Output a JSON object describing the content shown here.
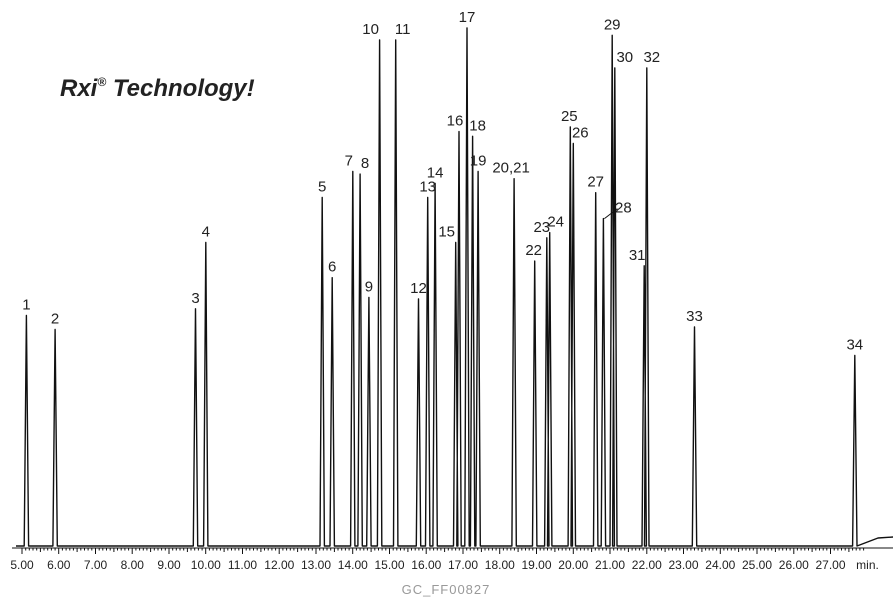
{
  "chart_data": {
    "type": "line",
    "title": "",
    "xlabel": "",
    "ylabel": "",
    "x_unit": "min.",
    "xlim": [
      5.0,
      27.9
    ],
    "ylim": [
      0,
      100
    ],
    "tick_labels": [
      "5.00",
      "6.00",
      "7.00",
      "8.00",
      "9.00",
      "10.00",
      "11.00",
      "12.00",
      "13.00",
      "14.00",
      "15.00",
      "16.00",
      "17.00",
      "18.00",
      "19.00",
      "20.00",
      "21.00",
      "22.00",
      "23.00",
      "24.00",
      "25.00",
      "26.00",
      "27.00",
      "min."
    ],
    "tick_values": [
      5,
      6,
      7,
      8,
      9,
      10,
      11,
      12,
      13,
      14,
      15,
      16,
      17,
      18,
      19,
      20,
      21,
      22,
      23,
      24,
      25,
      26,
      27
    ],
    "peaks": [
      {
        "label": "1",
        "rt": 5.12,
        "height": 44.5
      },
      {
        "label": "2",
        "rt": 5.9,
        "height": 41.8
      },
      {
        "label": "3",
        "rt": 9.72,
        "height": 45.8
      },
      {
        "label": "4",
        "rt": 10.0,
        "height": 58.6
      },
      {
        "label": "5",
        "rt": 13.17,
        "height": 67.3
      },
      {
        "label": "6",
        "rt": 13.44,
        "height": 51.8
      },
      {
        "label": "7",
        "rt": 14.0,
        "height": 72.3
      },
      {
        "label": "8",
        "rt": 14.2,
        "height": 71.8
      },
      {
        "label": "9",
        "rt": 14.44,
        "height": 48.0
      },
      {
        "label": "10",
        "rt": 14.73,
        "height": 97.7
      },
      {
        "label": "11",
        "rt": 15.17,
        "height": 97.7
      },
      {
        "label": "12",
        "rt": 15.79,
        "height": 47.7
      },
      {
        "label": "13",
        "rt": 16.04,
        "height": 67.3
      },
      {
        "label": "14",
        "rt": 16.24,
        "height": 70.0
      },
      {
        "label": "15",
        "rt": 16.8,
        "height": 58.6
      },
      {
        "label": "16",
        "rt": 16.89,
        "height": 80.0
      },
      {
        "label": "17",
        "rt": 17.11,
        "height": 100.0
      },
      {
        "label": "18",
        "rt": 17.26,
        "height": 79.1
      },
      {
        "label": "19",
        "rt": 17.41,
        "height": 72.3
      },
      {
        "label": "20,21",
        "rt": 18.39,
        "height": 70.9
      },
      {
        "label": "22",
        "rt": 18.95,
        "height": 55.0
      },
      {
        "label": "23",
        "rt": 19.28,
        "height": 59.5
      },
      {
        "label": "24",
        "rt": 19.36,
        "height": 60.5
      },
      {
        "label": "25",
        "rt": 19.92,
        "height": 80.9
      },
      {
        "label": "26",
        "rt": 20.0,
        "height": 77.7
      },
      {
        "label": "27",
        "rt": 20.61,
        "height": 68.2
      },
      {
        "label": "28",
        "rt": 20.82,
        "height": 63.2
      },
      {
        "label": "29",
        "rt": 21.06,
        "height": 98.6
      },
      {
        "label": "30",
        "rt": 21.13,
        "height": 92.3
      },
      {
        "label": "31",
        "rt": 21.93,
        "height": 54.1
      },
      {
        "label": "32",
        "rt": 22.0,
        "height": 92.3
      },
      {
        "label": "33",
        "rt": 23.3,
        "height": 42.3
      },
      {
        "label": "34",
        "rt": 27.66,
        "height": 36.8
      }
    ]
  },
  "branding": {
    "text": "Rxi",
    "registered": "®",
    "suffix": " Technology!"
  },
  "footer": "GC_FF00827"
}
